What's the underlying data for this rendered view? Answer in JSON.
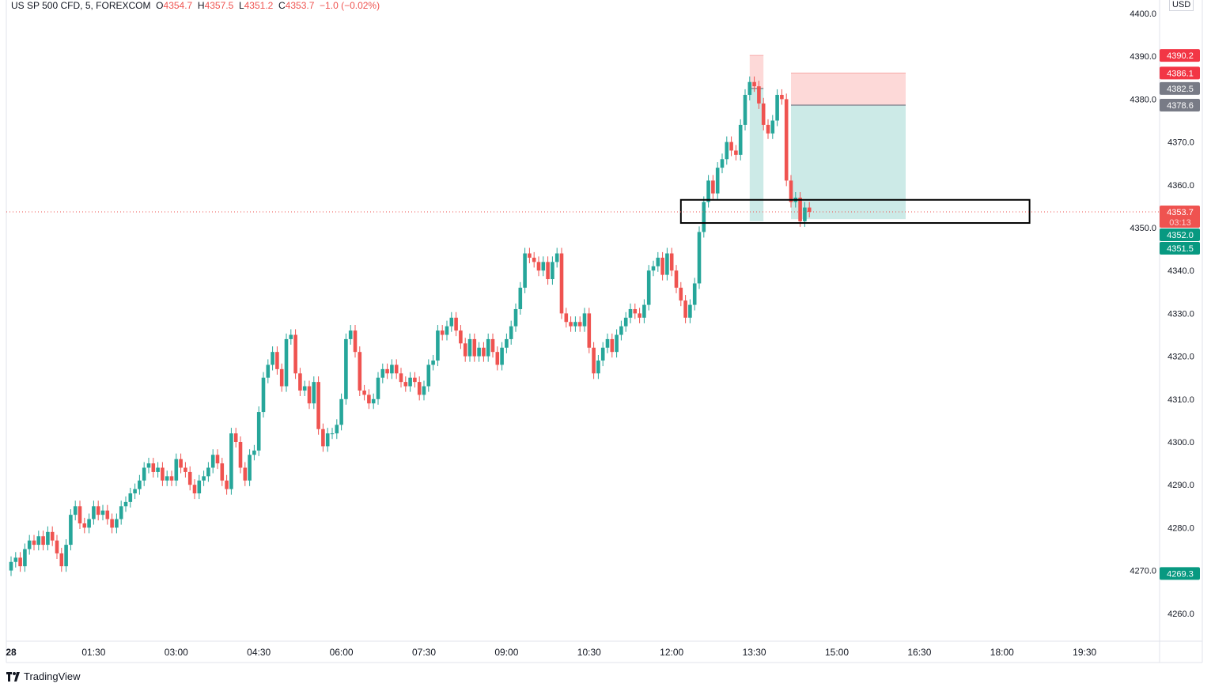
{
  "header": {
    "symbol": "US SP 500 CFD, 5, FOREXCOM",
    "o_label": "O",
    "o": "4354.7",
    "h_label": "H",
    "h": "4357.5",
    "l_label": "L",
    "l": "4351.2",
    "c_label": "C",
    "c": "4353.7",
    "change": "−1.0 (−0.02%)"
  },
  "currency": "USD",
  "brand": "TradingView",
  "colors": {
    "up": "#26a69a",
    "down": "#ef5350",
    "stop_zone": "#fdd9d8",
    "target_zone": "#cceae7",
    "neutral_label": "#787b86"
  },
  "chart_data": {
    "type": "candlestick",
    "interval_minutes": 5,
    "first_bar_time": "00:00",
    "first_open": 4270,
    "close": [
      4272,
      4273,
      4271,
      4275,
      4277,
      4276,
      4278,
      4276,
      4279,
      4277,
      4274,
      4271,
      4276,
      4283,
      4285,
      4281,
      4280,
      4282,
      4285,
      4283,
      4284,
      4282,
      4280,
      4282,
      4285,
      4286,
      4288,
      4289,
      4291,
      4294,
      4295,
      4293,
      4294,
      4291,
      4292,
      4291,
      4296,
      4294,
      4293,
      4290,
      4288,
      4291,
      4292,
      4294,
      4297,
      4295,
      4291,
      4289,
      4302,
      4300,
      4294,
      4291,
      4297,
      4298,
      4307,
      4315,
      4318,
      4321,
      4317,
      4313,
      4324,
      4325,
      4316,
      4312,
      4313,
      4309,
      4314,
      4303,
      4299,
      4302,
      4302,
      4304,
      4310,
      4324,
      4326,
      4321,
      4312,
      4311,
      4309,
      4310,
      4315,
      4317,
      4316,
      4318,
      4316,
      4314,
      4313,
      4315,
      4314,
      4311,
      4313,
      4318,
      4319,
      4326,
      4325,
      4327,
      4329,
      4326,
      4323,
      4320,
      4324,
      4320,
      4322,
      4320,
      4324,
      4321,
      4318,
      4322,
      4324,
      4327,
      4331,
      4336,
      4344,
      4343,
      4342,
      4340,
      4342,
      4338,
      4342,
      4344,
      4330,
      4328,
      4327,
      4328,
      4327,
      4330,
      4322,
      4316,
      4319,
      4322,
      4324,
      4321,
      4325,
      4327,
      4329,
      4331,
      4330,
      4329,
      4332,
      4340,
      4341,
      4343,
      4339,
      4344,
      4340,
      4336,
      4333,
      4329,
      4332,
      4337,
      4349,
      4356,
      4361,
      4358,
      4364,
      4366,
      4370,
      4368,
      4367,
      4374,
      4381,
      4384,
      4383,
      4379,
      4374,
      4372,
      4375,
      4381,
      4380,
      4361,
      4356,
      4357,
      4351.5,
      4354.7,
      4353.7
    ],
    "y_ticks": [
      "4260.0",
      "4270.0",
      "4280.0",
      "4290.0",
      "4300.0",
      "4310.0",
      "4320.0",
      "4330.0",
      "4340.0",
      "4350.0",
      "4360.0",
      "4370.0",
      "4380.0",
      "4390.0",
      "4400.0"
    ],
    "x_ticks": [
      {
        "label": "28",
        "time": "00:00"
      },
      {
        "label": "01:30",
        "time": "01:30"
      },
      {
        "label": "03:00",
        "time": "03:00"
      },
      {
        "label": "04:30",
        "time": "04:30"
      },
      {
        "label": "06:00",
        "time": "06:00"
      },
      {
        "label": "07:30",
        "time": "07:30"
      },
      {
        "label": "09:00",
        "time": "09:00"
      },
      {
        "label": "10:30",
        "time": "10:30"
      },
      {
        "label": "12:00",
        "time": "12:00"
      },
      {
        "label": "13:30",
        "time": "13:30"
      },
      {
        "label": "15:00",
        "time": "15:00"
      },
      {
        "label": "16:30",
        "time": "16:30"
      },
      {
        "label": "18:00",
        "time": "18:00"
      },
      {
        "label": "19:30",
        "time": "19:30"
      }
    ],
    "y_range": [
      4255,
      4403
    ],
    "current_price": 4353.7,
    "countdown": "03:13",
    "price_labels": [
      {
        "value": "4390.2",
        "color": "#f23645"
      },
      {
        "value": "4386.1",
        "color": "#f23645"
      },
      {
        "value": "4382.5",
        "color": "#787b86"
      },
      {
        "value": "4378.6",
        "color": "#787b86"
      },
      {
        "value": "4352.0",
        "color": "#089981"
      },
      {
        "value": "4351.5",
        "color": "#089981"
      },
      {
        "value": "4269.3",
        "color": "#089981"
      }
    ],
    "positions": [
      {
        "start": "13:25",
        "end": "13:40",
        "stop": 4390.2,
        "entry": 4382.5,
        "target": 4351.5
      },
      {
        "start": "14:10",
        "end": "16:15",
        "stop": 4386.1,
        "entry": 4378.6,
        "target": 4352.0
      }
    ],
    "rectangle": {
      "start": "12:10",
      "end": "18:30",
      "top": 4356.5,
      "bottom": 4351.1
    }
  }
}
